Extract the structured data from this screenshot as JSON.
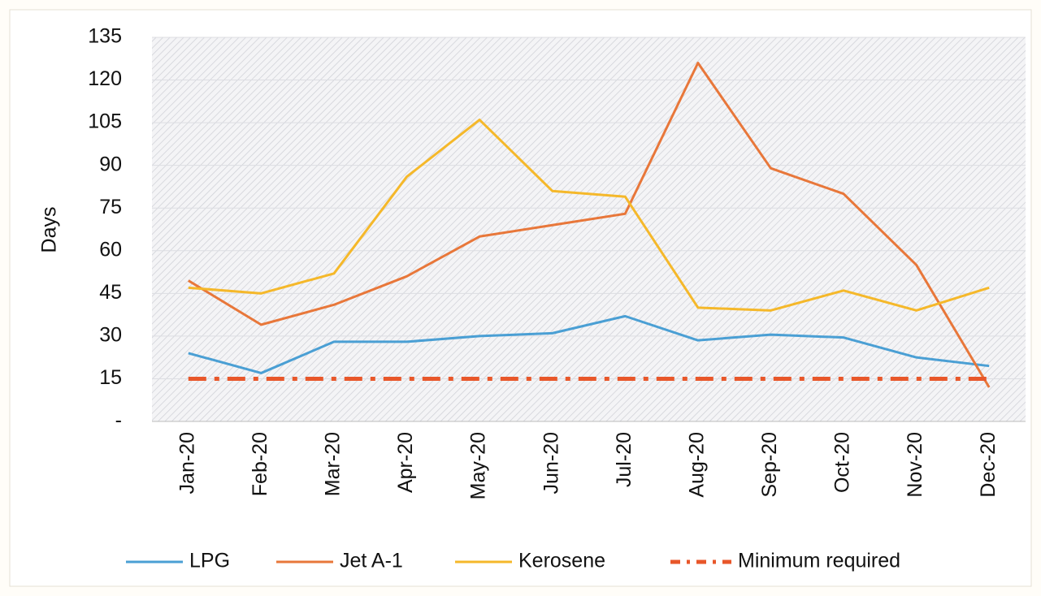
{
  "chart_data": {
    "type": "line",
    "y_label": "Days",
    "categories": [
      "Jan-20",
      "Feb-20",
      "Mar-20",
      "Apr-20",
      "May-20",
      "Jun-20",
      "Jul-20",
      "Aug-20",
      "Sep-20",
      "Oct-20",
      "Nov-20",
      "Dec-20"
    ],
    "series": [
      {
        "name": "LPG",
        "color": "#4a9fd4",
        "style": "solid",
        "values": [
          24,
          17,
          28,
          28,
          30,
          31,
          37,
          28.5,
          30.5,
          29.5,
          22.5,
          19.5
        ]
      },
      {
        "name": "Jet A-1",
        "color": "#e8773a",
        "style": "solid",
        "values": [
          49.5,
          34,
          41,
          51,
          65,
          69,
          73,
          126,
          89,
          80,
          55,
          12
        ]
      },
      {
        "name": "Kerosene",
        "color": "#f5b82a",
        "style": "solid",
        "values": [
          47,
          45,
          52,
          86,
          106,
          81,
          79,
          40,
          39,
          46,
          39,
          47
        ]
      },
      {
        "name": "Minimum required",
        "color": "#e8572a",
        "style": "dashdot",
        "values": [
          15,
          15,
          15,
          15,
          15,
          15,
          15,
          15,
          15,
          15,
          15,
          15
        ]
      }
    ],
    "ylim": [
      0,
      135
    ],
    "yticks": [
      {
        "value": 0,
        "label": "-"
      },
      15,
      30,
      45,
      60,
      75,
      90,
      105,
      120,
      135
    ],
    "grid": true,
    "legend": "bottom"
  }
}
